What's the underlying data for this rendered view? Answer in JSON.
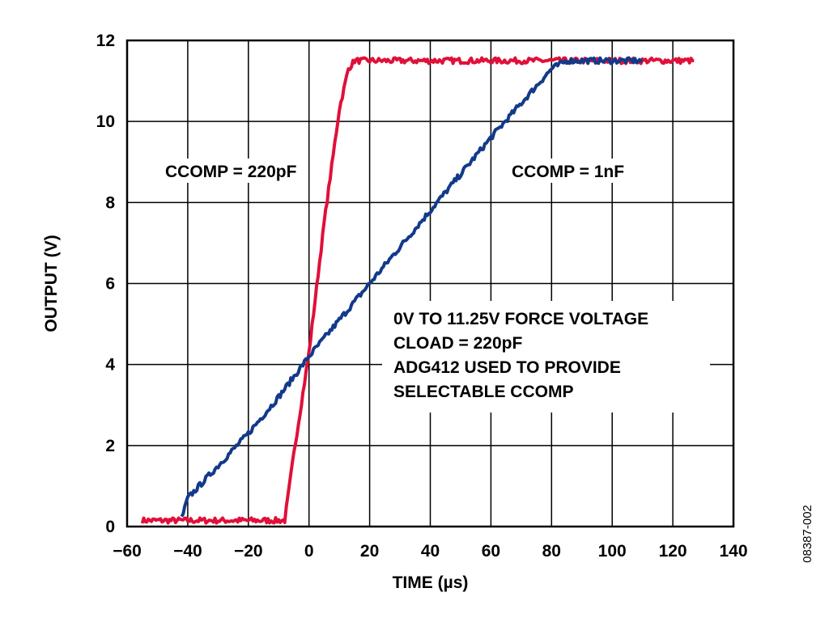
{
  "chart_data": {
    "type": "line",
    "xlabel": "TIME (µs)",
    "ylabel": "OUTPUT (V)",
    "xlim": [
      -60,
      140
    ],
    "ylim": [
      0,
      12
    ],
    "x_ticks": [
      -60,
      -40,
      -20,
      0,
      20,
      40,
      60,
      80,
      100,
      120,
      140
    ],
    "x_tick_labels": [
      "−60",
      "−40",
      "−20",
      "0",
      "20",
      "40",
      "60",
      "80",
      "100",
      "120",
      "140"
    ],
    "y_ticks": [
      0,
      2,
      4,
      6,
      8,
      10,
      12
    ],
    "y_tick_labels": [
      "0",
      "2",
      "4",
      "6",
      "8",
      "10",
      "12"
    ],
    "grid": true,
    "series": [
      {
        "name": "CCOMP = 220pF",
        "color": "#e0103a",
        "x": [
          -55,
          -10,
          -8,
          -5,
          0,
          5,
          10,
          13,
          15,
          127
        ],
        "y": [
          0.15,
          0.15,
          0.15,
          1.8,
          4.3,
          7.5,
          10.3,
          11.3,
          11.5,
          11.5
        ]
      },
      {
        "name": "CCOMP = 1nF",
        "color": "#123a8a",
        "x": [
          -42,
          -40,
          -30,
          -20,
          -10,
          0,
          20,
          40,
          60,
          80,
          85,
          110
        ],
        "y": [
          0.2,
          0.7,
          1.5,
          2.3,
          3.2,
          4.2,
          6.0,
          7.8,
          9.6,
          11.3,
          11.5,
          11.5
        ]
      }
    ],
    "annotations": [
      {
        "text": "CCOMP = 220pF",
        "x": -25,
        "y": 8.8
      },
      {
        "text": "CCOMP = 1nF",
        "x": 80,
        "y": 8.8
      }
    ],
    "note_lines": [
      "0V TO 11.25V FORCE VOLTAGE",
      "CLOAD = 220pF",
      "ADG412 USED TO PROVIDE",
      "SELECTABLE CCOMP"
    ],
    "figure_id": "08387-002"
  }
}
